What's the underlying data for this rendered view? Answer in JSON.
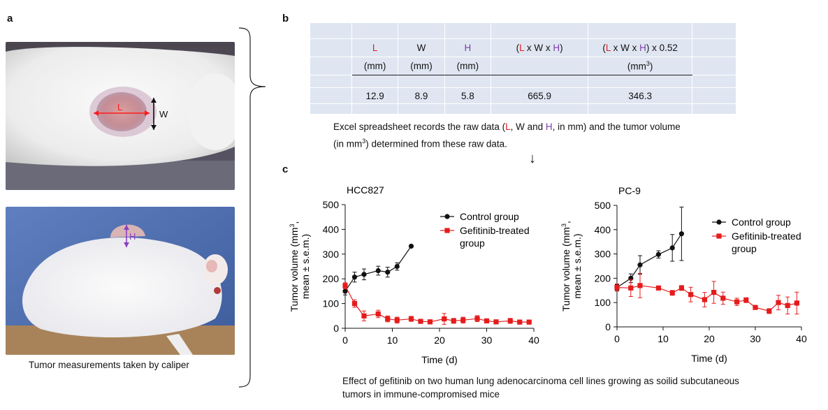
{
  "panels": {
    "a": "a",
    "b": "b",
    "c": "c"
  },
  "photo_a_labels": {
    "length": "L",
    "width": "W",
    "height": "H"
  },
  "caption_a": "Tumor measurements taken by caliper",
  "table": {
    "headers": [
      {
        "l1": "L",
        "l2": "(mm)"
      },
      {
        "l1": "W",
        "l2": "(mm)"
      },
      {
        "l1": "H",
        "l2": "(mm)"
      },
      {
        "l1a": "(",
        "l1b": "L",
        "l1c": " x W x ",
        "l1d": "H",
        "l1e": ")",
        "l2": ""
      },
      {
        "l1a": "(",
        "l1b": "L",
        "l1c": " x W x ",
        "l1d": "H",
        "l1e": ") x 0.52",
        "l2a": "(mm",
        "l2sup": "3",
        "l2b": ")"
      }
    ],
    "values": [
      "12.9",
      "8.9",
      "5.8",
      "665.9",
      "346.3"
    ]
  },
  "description": {
    "p1": "Excel spreadsheet records the raw data (",
    "L": "L",
    "p2": ", W and ",
    "H": "H",
    "p3": ", in mm) and the tumor volume",
    "p4": "(in mm",
    "sup": "3",
    "p5": ") determined from these raw data."
  },
  "arrow_glyph": "↓",
  "chart_data": [
    {
      "type": "line",
      "title": "HCC827",
      "xlabel": "Time (d)",
      "ylabel_line1": "Tumor volume (mm",
      "ylabel_sup": "3",
      "ylabel_tail": ",",
      "ylabel_line2": "mean ± s.e.m.)",
      "xlim": [
        0,
        40
      ],
      "ylim": [
        0,
        500
      ],
      "xticks": [
        "0",
        "10",
        "20",
        "30",
        "40"
      ],
      "yticks": [
        "0",
        "100",
        "200",
        "300",
        "400",
        "500"
      ],
      "legend": [
        "Control group",
        "Gefitinib-treated",
        "group"
      ],
      "series": [
        {
          "name": "Control group",
          "color": "#111111",
          "x": [
            0,
            2,
            4,
            7,
            9,
            11,
            14
          ],
          "y": [
            150,
            207,
            218,
            233,
            227,
            250,
            332
          ],
          "err": [
            15,
            20,
            22,
            18,
            20,
            15,
            0
          ]
        },
        {
          "name": "Gefitinib-treated group",
          "color": "#e51c1c",
          "x": [
            0,
            2,
            4,
            7,
            9,
            11,
            14,
            16,
            18,
            21,
            23,
            25,
            28,
            30,
            32,
            35,
            37,
            39
          ],
          "y": [
            172,
            100,
            50,
            58,
            38,
            33,
            38,
            28,
            26,
            38,
            30,
            33,
            39,
            30,
            26,
            30,
            25,
            25
          ],
          "err": [
            12,
            15,
            20,
            15,
            12,
            12,
            10,
            8,
            8,
            22,
            10,
            12,
            12,
            8,
            5,
            10,
            8,
            5
          ]
        }
      ]
    },
    {
      "type": "line",
      "title": "PC-9",
      "xlabel": "Time (d)",
      "ylabel_line1": "Tumor volume (mm",
      "ylabel_sup": "3",
      "ylabel_tail": ",",
      "ylabel_line2": "mean ± s.e.m.)",
      "xlim": [
        0,
        40
      ],
      "ylim": [
        0,
        500
      ],
      "xticks": [
        "0",
        "10",
        "20",
        "30",
        "40"
      ],
      "yticks": [
        "0",
        "100",
        "200",
        "300",
        "400",
        "500"
      ],
      "legend": [
        "Control group",
        "Gefitinib-treated",
        "group"
      ],
      "series": [
        {
          "name": "Control group",
          "color": "#111111",
          "x": [
            0,
            3,
            5,
            9,
            12,
            14
          ],
          "y": [
            162,
            200,
            255,
            298,
            325,
            383
          ],
          "err": [
            12,
            18,
            38,
            15,
            55,
            110
          ]
        },
        {
          "name": "Gefitinib-treated group",
          "color": "#e51c1c",
          "x": [
            0,
            3,
            5,
            9,
            12,
            14,
            16,
            19,
            21,
            23,
            26,
            28,
            30,
            33,
            35,
            37,
            39
          ],
          "y": [
            162,
            160,
            170,
            160,
            140,
            160,
            133,
            112,
            142,
            118,
            103,
            110,
            80,
            65,
            100,
            88,
            98
          ],
          "err": [
            15,
            35,
            50,
            8,
            10,
            10,
            30,
            30,
            45,
            25,
            15,
            10,
            8,
            10,
            30,
            35,
            45
          ]
        }
      ]
    }
  ],
  "caption_c_line1": "Effect of gefitinib on two human lung adenocarcinoma cell lines growing as soilid subcutaneous",
  "caption_c_line2": "tumors in immune-compromised mice"
}
